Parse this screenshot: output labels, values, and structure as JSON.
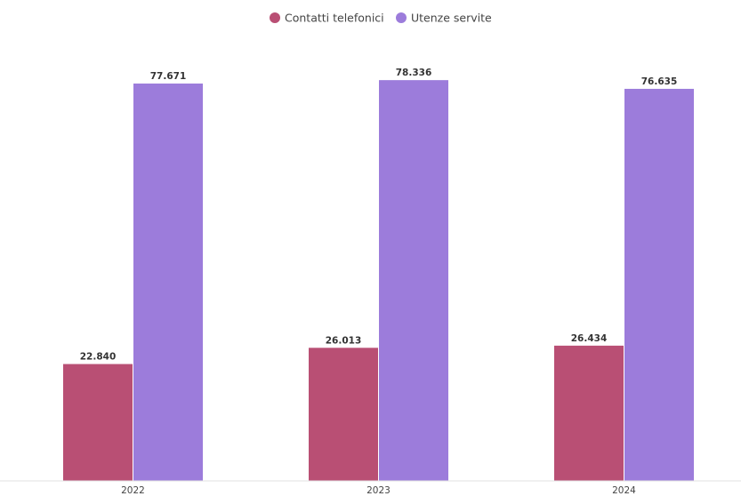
{
  "chart_data": {
    "type": "bar",
    "categories": [
      "2022",
      "2023",
      "2024"
    ],
    "series": [
      {
        "name": "Contatti telefonici",
        "color": "#b94f74",
        "values": [
          22840,
          26013,
          26434
        ],
        "labels": [
          "22.840",
          "26.013",
          "26.434"
        ]
      },
      {
        "name": "Utenze servite",
        "color": "#9c7cdb",
        "values": [
          77671,
          78336,
          76635
        ],
        "labels": [
          "77.671",
          "78.336",
          "76.635"
        ]
      }
    ],
    "title": "",
    "xlabel": "",
    "ylabel": "",
    "ylim": [
      0,
      94000
    ],
    "grid": false,
    "legend": "top-center"
  }
}
